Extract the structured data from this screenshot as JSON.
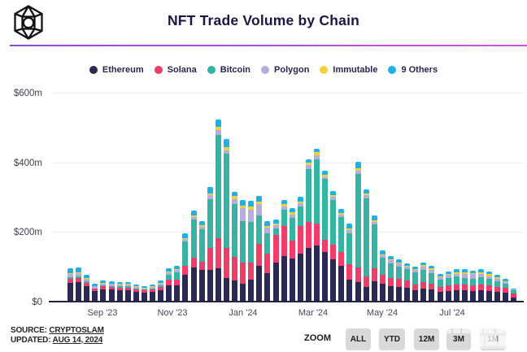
{
  "header": {
    "title": "NFT Trade Volume by Chain",
    "logo": "cryptoslam-cube-logo"
  },
  "legend": {
    "items": [
      {
        "label": "Ethereum",
        "color": "#2b2853"
      },
      {
        "label": "Solana",
        "color": "#ef3c68"
      },
      {
        "label": "Bitcoin",
        "color": "#36b3a2"
      },
      {
        "label": "Polygon",
        "color": "#b5ace0"
      },
      {
        "label": "Immutable",
        "color": "#f5cf3e"
      },
      {
        "label": "9 Others",
        "color": "#1cb2e8"
      }
    ]
  },
  "chart_data": {
    "type": "bar",
    "stacked": true,
    "unit": "$m",
    "title": "NFT Trade Volume by Chain",
    "ylim": [
      0,
      600
    ],
    "ytick_labels": [
      "$0",
      "$200m",
      "$400m",
      "$600m"
    ],
    "ytick_values": [
      0,
      200,
      400,
      600
    ],
    "xtick_labels": [
      "Sep '23",
      "Nov '23",
      "Jan '24",
      "Mar '24",
      "May '24",
      "Jul '24"
    ],
    "grid": true,
    "legend_position": "top",
    "series": [
      {
        "name": "Ethereum",
        "color": "#2b2853",
        "values": [
          52,
          54,
          42,
          27,
          33,
          32,
          30,
          30,
          26,
          24,
          26,
          30,
          45,
          45,
          75,
          95,
          88,
          89,
          93,
          66,
          58,
          50,
          60,
          101,
          80,
          109,
          129,
          121,
          135,
          152,
          160,
          140,
          120,
          100,
          60,
          54,
          40,
          56,
          48,
          42,
          40,
          38,
          30,
          34,
          32,
          26,
          28,
          30,
          30,
          28,
          30,
          28,
          26,
          24,
          9
        ]
      },
      {
        "name": "Solana",
        "color": "#ef3c68",
        "values": [
          12,
          12,
          10,
          7,
          8,
          8,
          8,
          8,
          7,
          6,
          7,
          9,
          15,
          16,
          25,
          28,
          25,
          63,
          86,
          86,
          67,
          59,
          49,
          63,
          55,
          80,
          86,
          51,
          80,
          75,
          63,
          35,
          40,
          40,
          45,
          41,
          30,
          37,
          26,
          24,
          23,
          20,
          17,
          20,
          18,
          14,
          16,
          17,
          16,
          16,
          17,
          16,
          14,
          13,
          11
        ]
      },
      {
        "name": "Bitcoin",
        "color": "#36b3a2",
        "values": [
          4,
          4,
          3,
          2,
          3,
          3,
          3,
          3,
          2,
          2,
          3,
          5,
          15,
          20,
          70,
          110,
          92,
          141,
          298,
          270,
          152,
          121,
          118,
          82,
          60,
          20,
          47,
          66,
          55,
          152,
          184,
          175,
          130,
          100,
          90,
          269,
          225,
          126,
          50,
          42,
          36,
          32,
          35,
          35,
          30,
          20,
          22,
          22,
          20,
          18,
          20,
          18,
          16,
          12,
          10
        ]
      },
      {
        "name": "Polygon",
        "color": "#b5ace0",
        "values": [
          9,
          9,
          7,
          5,
          5,
          5,
          5,
          5,
          4,
          4,
          4,
          5,
          6,
          7,
          7,
          8,
          8,
          10,
          13,
          11,
          16,
          36,
          35,
          32,
          15,
          8,
          9,
          10,
          10,
          12,
          12,
          6,
          8,
          8,
          9,
          9,
          8,
          8,
          7,
          8,
          8,
          7,
          7,
          9,
          9,
          7,
          8,
          9,
          12,
          14,
          10,
          9,
          8,
          5,
          2
        ]
      },
      {
        "name": "Immutable",
        "color": "#f5cf3e",
        "values": [
          3,
          3,
          3,
          2,
          2,
          2,
          2,
          2,
          2,
          2,
          2,
          2,
          3,
          3,
          4,
          4,
          4,
          6,
          10,
          8,
          8,
          8,
          8,
          7,
          6,
          5,
          7,
          6,
          6,
          6,
          8,
          6,
          5,
          5,
          5,
          8,
          5,
          4,
          3,
          4,
          4,
          3,
          3,
          4,
          4,
          3,
          3,
          4,
          4,
          3,
          5,
          5,
          4,
          3,
          1
        ]
      },
      {
        "name": "9 Others",
        "color": "#1cb2e8",
        "values": [
          13,
          13,
          9,
          5,
          7,
          7,
          6,
          6,
          5,
          5,
          5,
          7,
          9,
          10,
          12,
          14,
          12,
          18,
          21,
          23,
          13,
          15,
          17,
          16,
          12,
          12,
          11,
          12,
          14,
          10,
          11,
          11,
          12,
          10,
          13,
          18,
          12,
          14,
          10,
          8,
          8,
          7,
          7,
          8,
          8,
          6,
          7,
          8,
          8,
          8,
          8,
          9,
          7,
          5,
          3
        ]
      }
    ]
  },
  "footer": {
    "source_label": "SOURCE:",
    "source_value": "CRYPTOSLAM",
    "updated_label": "UPDATED:",
    "updated_value": "AUG 14, 2024"
  },
  "zoom": {
    "label": "ZOOM",
    "buttons": [
      "ALL",
      "YTD",
      "12M",
      "3M",
      "1M"
    ]
  }
}
